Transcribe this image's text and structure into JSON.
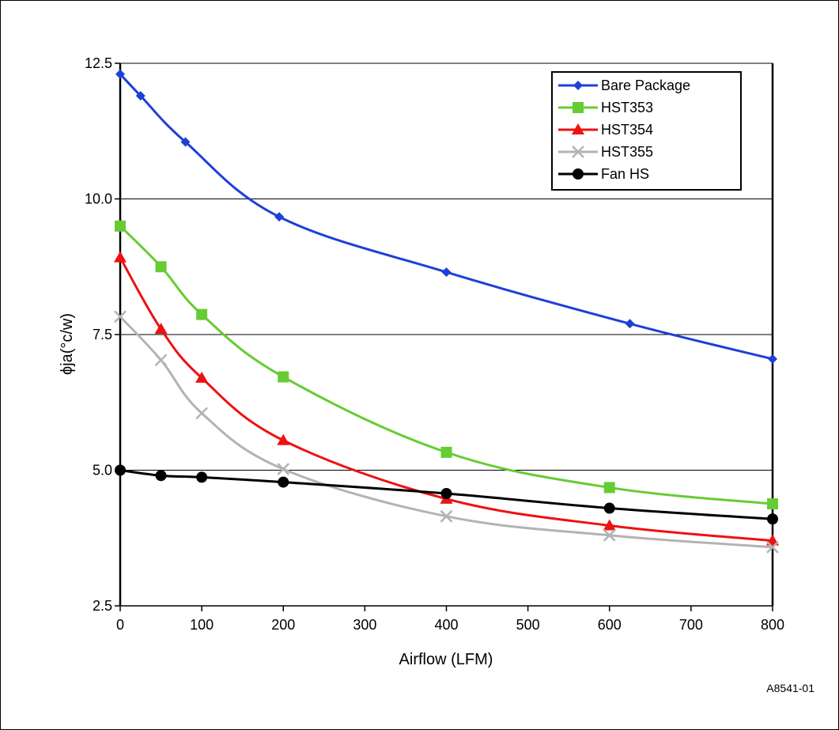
{
  "chart_data": {
    "type": "line",
    "title": "",
    "xlabel": "Airflow (LFM)",
    "ylabel": "ϕja(°c/w)",
    "xlim": [
      0,
      800
    ],
    "ylim": [
      2.5,
      12.5
    ],
    "x_ticks": [
      "0",
      "100",
      "200",
      "300",
      "400",
      "500",
      "600",
      "700",
      "800"
    ],
    "y_ticks": [
      "2.5",
      "5.0",
      "7.5",
      "10.0",
      "12.5"
    ],
    "grid": "horizontal",
    "legend_position": "top-right",
    "figure_id": "A8541-01",
    "series": [
      {
        "name": "Bare Package",
        "color": "#1f3fd9",
        "marker": "diamond",
        "x": [
          0,
          25,
          80,
          195,
          400,
          625,
          800
        ],
        "y": [
          12.3,
          11.9,
          11.05,
          9.67,
          8.65,
          7.7,
          7.05
        ]
      },
      {
        "name": "HST353",
        "color": "#66cc33",
        "marker": "square",
        "x": [
          0,
          50,
          100,
          200,
          400,
          600,
          800
        ],
        "y": [
          9.5,
          8.75,
          7.87,
          6.72,
          5.33,
          4.68,
          4.38
        ]
      },
      {
        "name": "HST354",
        "color": "#ee1111",
        "marker": "triangle",
        "x": [
          0,
          50,
          100,
          200,
          400,
          600,
          800
        ],
        "y": [
          8.92,
          7.6,
          6.7,
          5.55,
          4.47,
          3.98,
          3.7
        ]
      },
      {
        "name": "HST355",
        "color": "#b3b3b3",
        "marker": "x",
        "x": [
          0,
          50,
          100,
          200,
          400,
          600,
          800
        ],
        "y": [
          7.83,
          7.03,
          6.05,
          5.02,
          4.15,
          3.8,
          3.58
        ]
      },
      {
        "name": "Fan HS",
        "color": "#000000",
        "marker": "circle",
        "x": [
          0,
          50,
          100,
          200,
          400,
          600,
          800
        ],
        "y": [
          5.0,
          4.9,
          4.87,
          4.78,
          4.57,
          4.3,
          4.1
        ]
      }
    ]
  }
}
